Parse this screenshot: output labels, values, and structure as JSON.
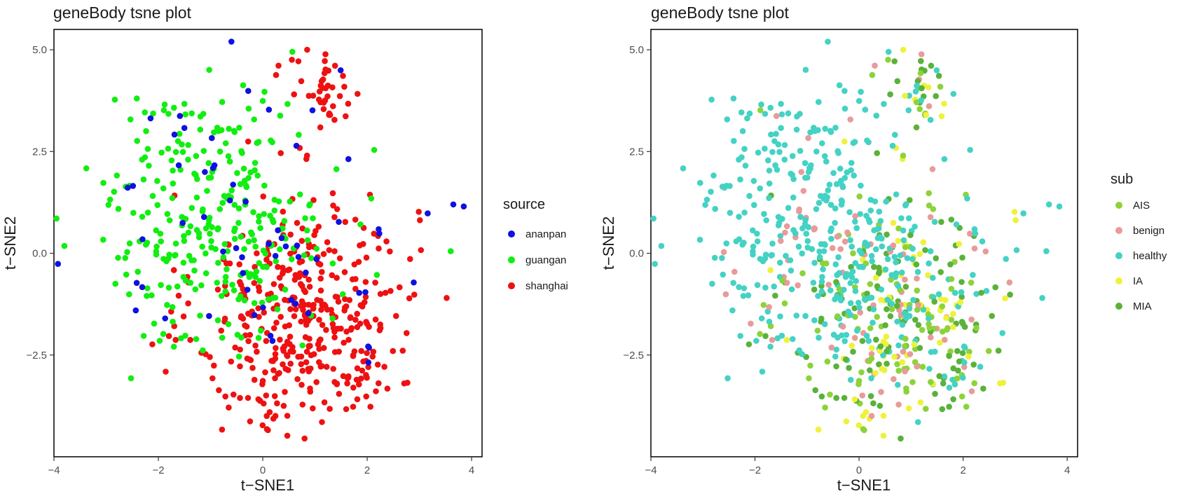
{
  "chart_data": [
    {
      "type": "scatter",
      "title": "geneBody tsne plot",
      "xlabel": "t−SNE1",
      "ylabel": "t−SNE2",
      "xlim": [
        -4.0,
        4.2
      ],
      "ylim": [
        -5.0,
        5.5
      ],
      "xticks": [
        -4,
        -2,
        0,
        2,
        4
      ],
      "yticks": [
        -2.5,
        0.0,
        2.5,
        5.0
      ],
      "xtick_labels": [
        "−4",
        "−2",
        "0",
        "2",
        "4"
      ],
      "ytick_labels": [
        "−2.5",
        "0.0",
        "2.5",
        "5.0"
      ],
      "grid": false,
      "legend_title": "source",
      "legend_position": "right",
      "series": [
        {
          "name": "ananpan",
          "color": "#1010e0",
          "n_points": 60
        },
        {
          "name": "guangan",
          "color": "#11ee11",
          "n_points": 300
        },
        {
          "name": "shanghai",
          "color": "#ee1111",
          "n_points": 400
        }
      ]
    },
    {
      "type": "scatter",
      "title": "geneBody tsne plot",
      "xlabel": "t−SNE1",
      "ylabel": "t−SNE2",
      "xlim": [
        -4.0,
        4.2
      ],
      "ylim": [
        -5.0,
        5.5
      ],
      "xticks": [
        -4,
        -2,
        0,
        2,
        4
      ],
      "yticks": [
        -2.5,
        0.0,
        2.5,
        5.0
      ],
      "xtick_labels": [
        "−4",
        "−2",
        "0",
        "2",
        "4"
      ],
      "ytick_labels": [
        "−2.5",
        "0.0",
        "2.5",
        "5.0"
      ],
      "grid": false,
      "legend_title": "sub",
      "legend_position": "right",
      "series": [
        {
          "name": "AIS",
          "color": "#8cd33a",
          "n_points": 110
        },
        {
          "name": "benign",
          "color": "#e99a9a",
          "n_points": 40
        },
        {
          "name": "healthy",
          "color": "#44d2c4",
          "n_points": 380
        },
        {
          "name": "IA",
          "color": "#eef23a",
          "n_points": 80
        },
        {
          "name": "MIA",
          "color": "#5ab23a",
          "n_points": 150
        }
      ]
    }
  ]
}
